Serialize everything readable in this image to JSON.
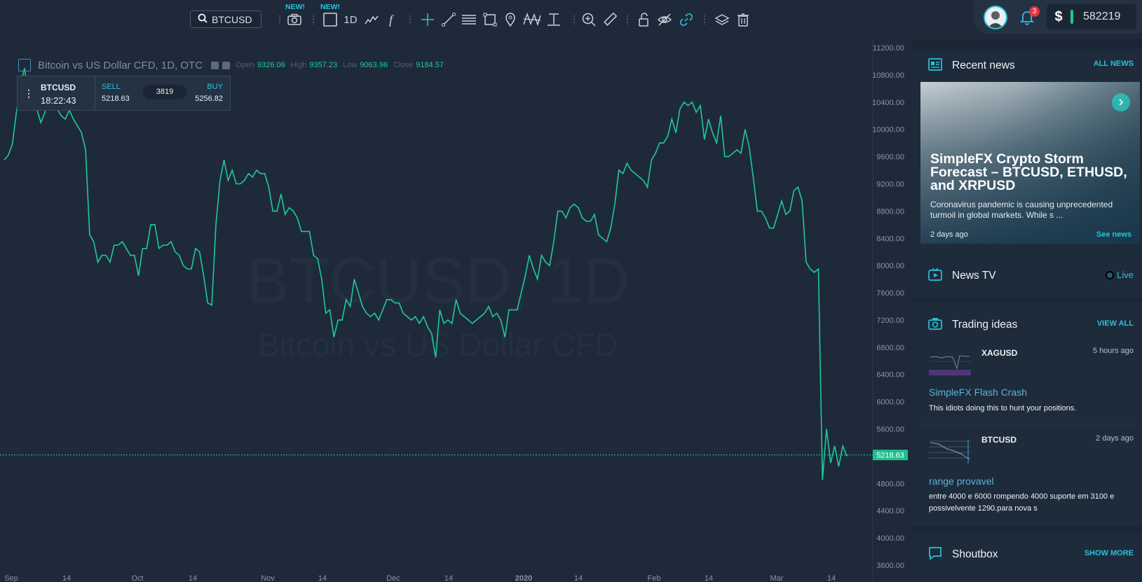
{
  "toolbar": {
    "search_value": "BTCUSD",
    "new_badge_1": "NEW!",
    "new_badge_2": "NEW!",
    "interval": "1D",
    "icons": [
      "search-icon",
      "camera-icon",
      "rectangle-layout-icon",
      "line-chart-type-icon",
      "function-icon",
      "crosshair-icon",
      "trend-line-icon",
      "horizontal-lines-icon",
      "rectangle-draw-icon",
      "pin-icon",
      "pattern-icon",
      "measure-icon",
      "zoom-in-icon",
      "ruler-icon",
      "unlock-icon",
      "eye-off-icon",
      "link-icon",
      "layers-icon",
      "trash-icon"
    ]
  },
  "account": {
    "notification_count": "3",
    "currency_symbol": "$",
    "balance": "582219"
  },
  "chart_header": {
    "title": "Bitcoin vs US Dollar CFD, 1D, OTC",
    "open_label": "Open",
    "open": "9326.06",
    "high_label": "High",
    "high": "9357.23",
    "low_label": "Low",
    "low": "9063.96",
    "close_label": "Close",
    "close": "9184.57"
  },
  "quote": {
    "symbol": "BTCUSD",
    "time": "18:22:43",
    "sell_label": "SELL",
    "sell": "5218.63",
    "spread": "3819",
    "buy_label": "BUY",
    "buy": "5256.82"
  },
  "watermark": {
    "main": "BTCUSD, 1D",
    "sub": "Bitcoin vs US Dollar CFD"
  },
  "chart_data": {
    "type": "line",
    "series": [
      {
        "values": [
          9550,
          9620,
          9780,
          10250,
          10650,
          10900,
          10450,
          10550,
          10300,
          10100,
          10250,
          10500,
          10400,
          10300,
          10200,
          10150,
          10280,
          10150,
          10050,
          9950,
          9700,
          8450,
          8350,
          8050,
          8150,
          8150,
          8050,
          8300,
          8300,
          8350,
          8250,
          8150,
          8150,
          7850,
          8250,
          8250,
          8600,
          8600,
          8250,
          8300,
          8300,
          8350,
          8200,
          8150,
          8000,
          7950,
          7950,
          8250,
          8200,
          7850,
          7450,
          7420,
          8600,
          9250,
          9550,
          9250,
          9400,
          9200,
          9200,
          9250,
          9350,
          9300,
          9400,
          9350,
          9350,
          9150,
          8800,
          8800,
          9050,
          8750,
          8850,
          8800,
          8700,
          8500,
          8500,
          8500,
          8150,
          8100,
          7800,
          7300,
          7350,
          6950,
          7200,
          7200,
          7500,
          7400,
          7800,
          7600,
          7400,
          7300,
          7250,
          7300,
          7200,
          7350,
          7500,
          7500,
          7450,
          7450,
          7300,
          7250,
          7200,
          7250,
          7150,
          7250,
          7100,
          7000,
          6650,
          7350,
          7150,
          7200,
          7150,
          7500,
          7300,
          7250,
          7200,
          7150,
          7200,
          7250,
          7300,
          7400,
          7250,
          7300,
          7200,
          6950,
          7350,
          7350,
          7350,
          7600,
          7850,
          8150,
          7950,
          7800,
          8150,
          8050,
          8000,
          8350,
          8800,
          8800,
          8700,
          8850,
          8900,
          8850,
          8700,
          8650,
          8650,
          8750,
          8450,
          8400,
          8350,
          8550,
          8900,
          9400,
          9350,
          9500,
          9400,
          9350,
          9300,
          9250,
          9150,
          9550,
          9650,
          9800,
          9800,
          9900,
          10150,
          9950,
          10300,
          10400,
          10350,
          10400,
          10250,
          10350,
          9850,
          10150,
          9950,
          9800,
          10200,
          9600,
          9600,
          9650,
          9700,
          9650,
          10000,
          9750,
          9300,
          8800,
          8800,
          8700,
          8550,
          8550,
          8750,
          8950,
          8750,
          8800,
          9100,
          9150,
          8950,
          8050,
          7950,
          7900,
          7950,
          4850,
          5600,
          5100,
          5350,
          5050,
          5350,
          5200
        ]
      }
    ],
    "x_ticks": [
      "Sep",
      "14",
      "Oct",
      "14",
      "Nov",
      "14",
      "Dec",
      "14",
      "2020",
      "14",
      "Feb",
      "14",
      "Mar",
      "14"
    ],
    "y_ticks": [
      "3600.00",
      "4000.00",
      "4400.00",
      "4800.00",
      "5200.00",
      "5600.00",
      "6000.00",
      "6400.00",
      "6800.00",
      "7200.00",
      "7600.00",
      "8000.00",
      "8400.00",
      "8800.00",
      "9200.00",
      "9600.00",
      "10000.00",
      "10400.00",
      "10800.00",
      "11200.00"
    ],
    "ylim": [
      3600,
      11200
    ],
    "last_price": "5218.63",
    "colors": {
      "line": "#20c997",
      "grid_axis_text": "#8796a6",
      "last_price_bg": "#1fbf8f"
    }
  },
  "sidebar": {
    "recent_news": {
      "title": "Recent news",
      "link": "ALL NEWS",
      "card_title": "SimpleFX Crypto Storm Forecast – BTCUSD, ETHUSD, and XRPUSD",
      "card_text": "Coronavirus pandemic is causing unprecedented turmoil in global markets. While s ...",
      "card_date": "2 days ago",
      "card_link": "See news"
    },
    "news_tv": {
      "title": "News TV",
      "live": "Live"
    },
    "trading_ideas": {
      "title": "Trading ideas",
      "link": "VIEW ALL",
      "items": [
        {
          "symbol": "XAGUSD",
          "time": "5 hours ago",
          "title": "SimpleFX Flash Crash",
          "text": "This idiots doing this to hunt your positions."
        },
        {
          "symbol": "BTCUSD",
          "time": "2 days ago",
          "title": "range provavel",
          "text": "entre 4000 e 6000 rompendo 4000 suporte em 3100 e possivelvente 1290.para nova s"
        }
      ]
    },
    "shoutbox": {
      "title": "Shoutbox",
      "link": "SHOW MORE"
    }
  }
}
